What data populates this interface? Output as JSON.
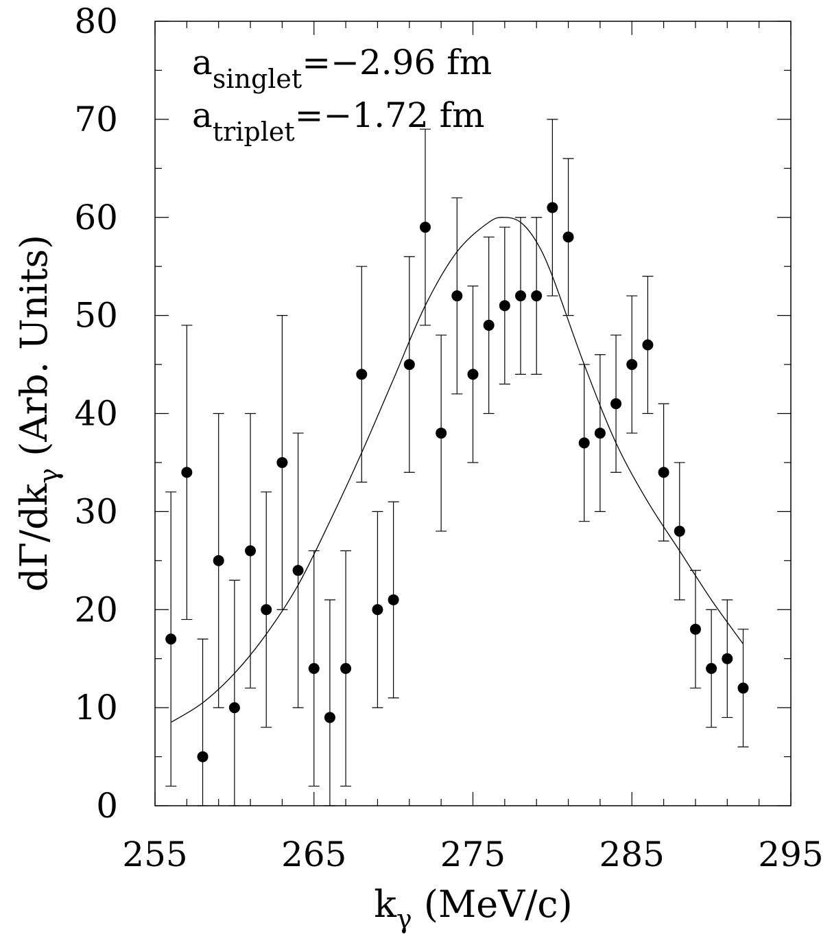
{
  "chart_data": {
    "type": "scatter",
    "xlabel": "k",
    "xlabel_sub": "γ",
    "xlabel_units": " (MeV/c)",
    "ylabel": "dΓ/dk",
    "ylabel_sub": "γ",
    "ylabel_units": " (Arb. Units)",
    "xlim": [
      255,
      295
    ],
    "ylim": [
      0,
      80
    ],
    "xticks": [
      255,
      265,
      275,
      285,
      295
    ],
    "yticks": [
      0,
      10,
      20,
      30,
      40,
      50,
      60,
      70,
      80
    ],
    "annotations": [
      {
        "symbol": "a",
        "sub": "singlet",
        "text": "=−2.96 fm"
      },
      {
        "symbol": "a",
        "sub": "triplet",
        "text": "=−1.72 fm"
      }
    ],
    "series": [
      {
        "kind": "points_with_error_bars",
        "points": [
          {
            "x": 256.0,
            "y": 17,
            "lo": 2,
            "hi": 32
          },
          {
            "x": 257.0,
            "y": 34,
            "lo": 19,
            "hi": 49
          },
          {
            "x": 258.0,
            "y": 5,
            "lo": 0,
            "hi": 17
          },
          {
            "x": 259.0,
            "y": 25,
            "lo": 10,
            "hi": 40
          },
          {
            "x": 260.0,
            "y": 10,
            "lo": 0,
            "hi": 23
          },
          {
            "x": 261.0,
            "y": 26,
            "lo": 12,
            "hi": 40
          },
          {
            "x": 262.0,
            "y": 20,
            "lo": 8,
            "hi": 32
          },
          {
            "x": 263.0,
            "y": 35,
            "lo": 20,
            "hi": 50
          },
          {
            "x": 264.0,
            "y": 24,
            "lo": 10,
            "hi": 38
          },
          {
            "x": 265.0,
            "y": 14,
            "lo": 2,
            "hi": 26
          },
          {
            "x": 266.0,
            "y": 9,
            "lo": 0,
            "hi": 21
          },
          {
            "x": 267.0,
            "y": 14,
            "lo": 2,
            "hi": 26
          },
          {
            "x": 268.0,
            "y": 44,
            "lo": 33,
            "hi": 55
          },
          {
            "x": 269.0,
            "y": 20,
            "lo": 10,
            "hi": 30
          },
          {
            "x": 270.0,
            "y": 21,
            "lo": 11,
            "hi": 31
          },
          {
            "x": 271.0,
            "y": 45,
            "lo": 34,
            "hi": 56
          },
          {
            "x": 272.0,
            "y": 59,
            "lo": 49,
            "hi": 69
          },
          {
            "x": 273.0,
            "y": 38,
            "lo": 28,
            "hi": 48
          },
          {
            "x": 274.0,
            "y": 52,
            "lo": 42,
            "hi": 62
          },
          {
            "x": 275.0,
            "y": 44,
            "lo": 35,
            "hi": 53
          },
          {
            "x": 276.0,
            "y": 49,
            "lo": 40,
            "hi": 58
          },
          {
            "x": 277.0,
            "y": 51,
            "lo": 43,
            "hi": 59
          },
          {
            "x": 278.0,
            "y": 52,
            "lo": 44,
            "hi": 60
          },
          {
            "x": 279.0,
            "y": 52,
            "lo": 44,
            "hi": 60
          },
          {
            "x": 280.0,
            "y": 61,
            "lo": 52,
            "hi": 70
          },
          {
            "x": 281.0,
            "y": 58,
            "lo": 50,
            "hi": 66
          },
          {
            "x": 282.0,
            "y": 37,
            "lo": 29,
            "hi": 45
          },
          {
            "x": 283.0,
            "y": 38,
            "lo": 30,
            "hi": 46
          },
          {
            "x": 284.0,
            "y": 41,
            "lo": 34,
            "hi": 48
          },
          {
            "x": 285.0,
            "y": 45,
            "lo": 38,
            "hi": 52
          },
          {
            "x": 286.0,
            "y": 47,
            "lo": 40,
            "hi": 54
          },
          {
            "x": 287.0,
            "y": 34,
            "lo": 27,
            "hi": 41
          },
          {
            "x": 288.0,
            "y": 28,
            "lo": 21,
            "hi": 35
          },
          {
            "x": 289.0,
            "y": 18,
            "lo": 12,
            "hi": 24
          },
          {
            "x": 290.0,
            "y": 14,
            "lo": 8,
            "hi": 20
          },
          {
            "x": 291.0,
            "y": 15,
            "lo": 9,
            "hi": 21
          },
          {
            "x": 292.0,
            "y": 12,
            "lo": 6,
            "hi": 18
          }
        ]
      },
      {
        "kind": "curve",
        "x": [
          256,
          258,
          260,
          262,
          264,
          266,
          268,
          270,
          272,
          274,
          276,
          277,
          278,
          279,
          280,
          282,
          284,
          286,
          288,
          290,
          292
        ],
        "y": [
          8.5,
          10.5,
          13.5,
          17.5,
          22.5,
          29,
          36,
          43.5,
          51,
          56.5,
          59.5,
          60,
          59.5,
          57.5,
          54,
          45,
          37,
          31,
          26,
          21,
          16.5
        ]
      }
    ]
  }
}
